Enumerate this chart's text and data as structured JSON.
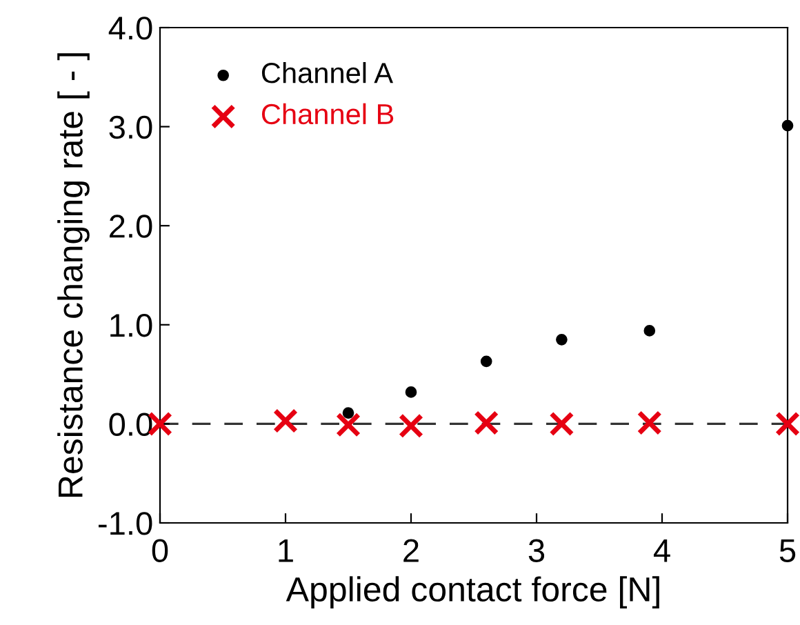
{
  "chart_data": {
    "type": "scatter",
    "xlabel": "Applied contact force [N]",
    "ylabel": "Resistance changing rate [ - ]",
    "series": [
      {
        "name": "Channel A",
        "color": "#000000",
        "marker": "circle",
        "x": [
          1.5,
          2,
          2.6,
          3.2,
          3.9,
          5
        ],
        "values": [
          0.11,
          0.32,
          0.63,
          0.85,
          0.94,
          3.01
        ]
      },
      {
        "name": "Channel B",
        "color": "#e60012",
        "marker": "cross",
        "x": [
          0,
          1,
          1.5,
          2,
          2.6,
          3.2,
          3.9,
          5
        ],
        "values": [
          0,
          0.03,
          -0.01,
          -0.02,
          0.01,
          0,
          0.01,
          0
        ]
      }
    ],
    "xlim": [
      0,
      5
    ],
    "xticks": [
      0,
      1,
      2,
      3,
      4,
      5
    ],
    "ylim": [
      -1.0,
      4.0
    ],
    "yticks": [
      {
        "value": -1,
        "label": "-1.0"
      },
      {
        "value": 0,
        "label": "0.0"
      },
      {
        "value": 1,
        "label": "1.0"
      },
      {
        "value": 2,
        "label": "2.0"
      },
      {
        "value": 3,
        "label": "3.0"
      },
      {
        "value": 4,
        "label": "4.0"
      }
    ],
    "ref_lines": [
      {
        "axis": "y",
        "value": 0,
        "color": "#333333",
        "line_style": "dashed"
      }
    ],
    "legend": "top left",
    "grid": false
  }
}
